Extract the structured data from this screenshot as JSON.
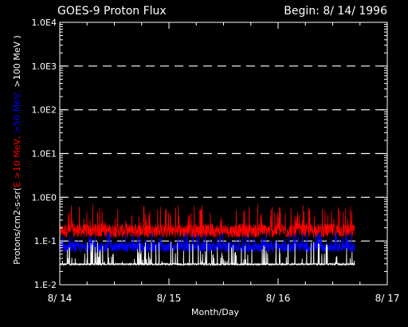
{
  "chart_data": {
    "type": "line",
    "title": "GOES-9 Proton Flux",
    "subtitle": "Begin: 8/ 14/ 1996",
    "xlabel": "Month/Day",
    "ylabel_parts": [
      {
        "text": "Protons/cm2-s-sr(",
        "color": "#ffffff"
      },
      {
        "text": "E >10 MeV, ",
        "color": "#ff0000"
      },
      {
        "text": ">50 MeV, ",
        "color": "#0000ff"
      },
      {
        "text": ">100 MeV )",
        "color": "#ffffff"
      }
    ],
    "scale": "log",
    "ylim": [
      0.01,
      10000
    ],
    "xlim": [
      0,
      3
    ],
    "x_tick_values": [
      0,
      1,
      2,
      3
    ],
    "x_tick_labels": [
      "8/ 14",
      "8/ 15",
      "8/ 16",
      "8/ 17"
    ],
    "y_tick_values": [
      0.01,
      0.1,
      1,
      10,
      100,
      1000,
      10000
    ],
    "y_tick_labels": [
      "1.E-2",
      "1.E-1",
      "1.0E0",
      "1.0E1",
      "1.0E2",
      "1.0E3",
      "1.0E4"
    ],
    "grid": "dashed horizontal at decades",
    "colors": {
      "background": "#000000",
      "axes": "#ffffff",
      "grid": "#ffffff"
    },
    "series": [
      {
        "color": "#ff0000",
        "x_range": [
          0,
          2.7
        ],
        "baseline": 0.2,
        "noise_floor": 0.12,
        "noise_peak": 0.7
      },
      {
        "color": "#0000ff",
        "x_range": [
          0,
          2.7
        ],
        "baseline": 0.08,
        "noise_floor": 0.055,
        "noise_peak": 0.16
      },
      {
        "color": "#ffffff",
        "x_range": [
          0,
          2.7
        ],
        "baseline": 0.03,
        "noise_floor": 0.028,
        "noise_peak": 0.1
      }
    ]
  }
}
